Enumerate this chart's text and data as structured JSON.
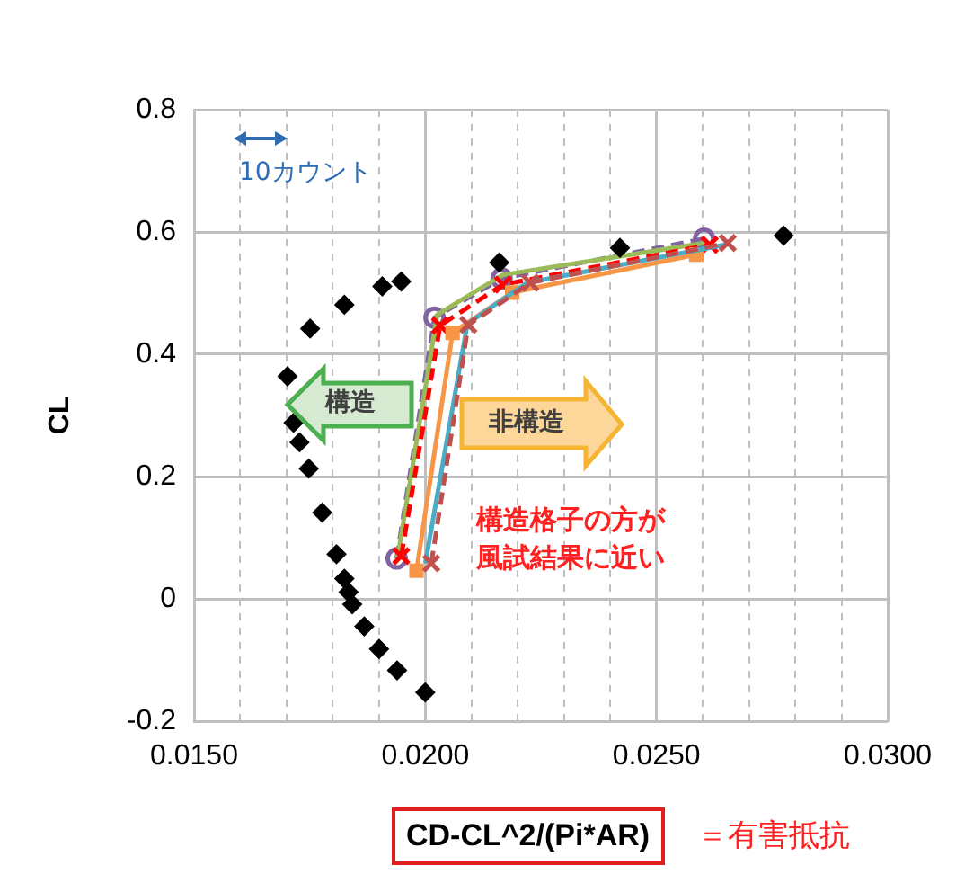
{
  "chart_data": {
    "type": "line",
    "xlabel": "CD-CL^2/(Pi*AR)",
    "ylabel": "CL",
    "xlim": [
      0.015,
      0.03
    ],
    "ylim": [
      -0.2,
      0.8
    ],
    "xticks": [
      {
        "value": 0.015,
        "label": "0.0150"
      },
      {
        "value": 0.016,
        "label": null
      },
      {
        "value": 0.017,
        "label": null
      },
      {
        "value": 0.018,
        "label": null
      },
      {
        "value": 0.019,
        "label": null
      },
      {
        "value": 0.02,
        "label": "0.0200"
      },
      {
        "value": 0.021,
        "label": null
      },
      {
        "value": 0.022,
        "label": null
      },
      {
        "value": 0.023,
        "label": null
      },
      {
        "value": 0.024,
        "label": null
      },
      {
        "value": 0.025,
        "label": "0.0250"
      },
      {
        "value": 0.026,
        "label": null
      },
      {
        "value": 0.027,
        "label": null
      },
      {
        "value": 0.028,
        "label": null
      },
      {
        "value": 0.029,
        "label": null
      },
      {
        "value": 0.03,
        "label": "0.0300"
      }
    ],
    "yticks": [
      -0.2,
      0,
      0.2,
      0.4,
      0.6,
      0.8
    ],
    "grid": true,
    "legend": false,
    "annotations": [
      "10カウント",
      "構造",
      "非構造",
      "構造格子の方が風試結果に近い",
      "＝有害抵抗"
    ],
    "series": [
      {
        "type": "scatter",
        "color": "#000000",
        "marker": "diamond",
        "x": [
          0.01948,
          0.01907,
          0.01825,
          0.01751,
          0.01702,
          0.01715,
          0.01728,
          0.01748,
          0.01777,
          0.01808,
          0.01825,
          0.01834,
          0.01842,
          0.01868,
          0.019,
          0.01939,
          0.02,
          0.0216,
          0.02421,
          0.02775
        ],
        "values": [
          0.519,
          0.511,
          0.481,
          0.442,
          0.364,
          0.288,
          0.256,
          0.213,
          0.141,
          0.073,
          0.033,
          0.011,
          -0.009,
          -0.045,
          -0.082,
          -0.117,
          -0.153,
          0.55,
          0.574,
          0.594
        ]
      },
      {
        "color": "#8064a2",
        "marker": "circle",
        "line_style": "dashed",
        "x": [
          0.01938,
          0.0202,
          0.02165,
          0.02603
        ],
        "values": [
          0.066,
          0.46,
          0.524,
          0.589
        ]
      },
      {
        "color": "#9bbb59",
        "marker": "none",
        "line_style": "solid",
        "x": [
          0.0194,
          0.02026,
          0.02168,
          0.02603
        ],
        "values": [
          0.067,
          0.465,
          0.53,
          0.582
        ]
      },
      {
        "color": "#ff0000",
        "marker": "cross",
        "line_style": "dashed",
        "x": [
          0.01948,
          0.02032,
          0.02168,
          0.02615
        ],
        "values": [
          0.07,
          0.447,
          0.514,
          0.579
        ]
      },
      {
        "color": "#f79646",
        "marker": "square",
        "line_style": "solid",
        "x": [
          0.01981,
          0.02059,
          0.02188,
          0.02586
        ],
        "values": [
          0.046,
          0.435,
          0.501,
          0.563
        ]
      },
      {
        "color": "#4bacc6",
        "marker": "none",
        "line_style": "solid",
        "x": [
          0.02,
          0.02091,
          0.0222,
          0.02648
        ],
        "values": [
          0.058,
          0.45,
          0.517,
          0.579
        ]
      },
      {
        "color": "#c0504d",
        "marker": "cross",
        "line_style": "dashed",
        "x": [
          0.02013,
          0.02093,
          0.02227,
          0.02654
        ],
        "values": [
          0.058,
          0.448,
          0.517,
          0.582
        ]
      }
    ]
  }
}
